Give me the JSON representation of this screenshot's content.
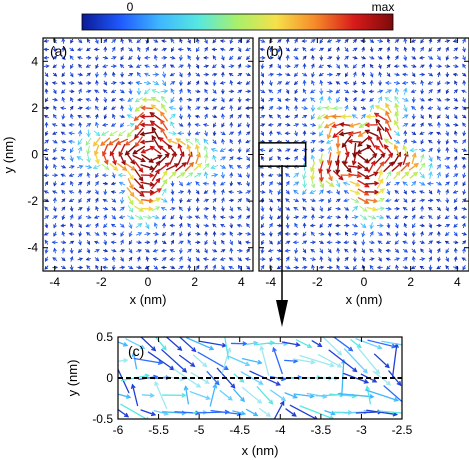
{
  "colorbar": {
    "min_label": "0",
    "max_label": "max",
    "colors": [
      "#0a1a96",
      "#1f5aff",
      "#3fb7ff",
      "#57e8e0",
      "#a9f06a",
      "#f5e14a",
      "#f58a2a",
      "#d81a1a",
      "#7d0a0a"
    ]
  },
  "chart_data": [
    {
      "id": "a",
      "type": "quiver",
      "panel_label": "(a)",
      "xlabel": "x (nm)",
      "ylabel": "y (nm)",
      "xlim": [
        -4.5,
        4.5
      ],
      "ylim": [
        -5,
        5
      ],
      "xticks": [
        -4,
        -2,
        0,
        2,
        4
      ],
      "yticks": [
        -4,
        -2,
        0,
        2,
        4
      ],
      "field": {
        "center": [
          0,
          0
        ],
        "core_radius": 2.6,
        "lobes": 4,
        "lobe_phase": 0.4
      },
      "inset_box": null
    },
    {
      "id": "b",
      "type": "quiver",
      "panel_label": "(b)",
      "xlabel": "x (nm)",
      "ylabel": "",
      "xlim": [
        -4.5,
        4.5
      ],
      "ylim": [
        -5,
        5
      ],
      "xticks": [
        -4,
        -2,
        0,
        2,
        4
      ],
      "yticks": [
        -4,
        -2,
        0,
        2,
        4
      ],
      "field": {
        "center": [
          0,
          0
        ],
        "core_radius": 2.6,
        "lobes": 5,
        "lobe_phase": 1.1
      },
      "inset_box": {
        "x": [
          -6,
          -2.5
        ],
        "y": [
          -0.5,
          0.5
        ]
      }
    },
    {
      "id": "c",
      "type": "quiver",
      "panel_label": "(c)",
      "xlabel": "x (nm)",
      "ylabel": "y (nm)",
      "xlim": [
        -6,
        -2.5
      ],
      "ylim": [
        -0.5,
        0.5
      ],
      "xticks": [
        -6,
        -5.5,
        -5,
        -4.5,
        -4,
        -3.5,
        -3,
        -2.5
      ],
      "yticks": [
        -0.5,
        0,
        0.5
      ],
      "dashed_line_y": 0
    }
  ]
}
